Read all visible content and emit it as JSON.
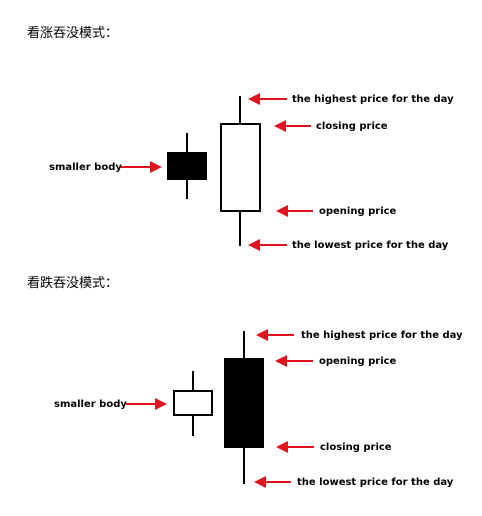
{
  "sections": [
    {
      "heading": "看涨吞没模式：",
      "small_candle_fill": "#000000",
      "large_candle_fill": "#ffffff",
      "labels": {
        "smaller_body": "smaller body",
        "high": "the highest price for the day",
        "top_of_body": "closing price",
        "bottom_of_body": "opening price",
        "low": "the lowest price for the day"
      }
    },
    {
      "heading": "看跌吞没模式：",
      "small_candle_fill": "#ffffff",
      "large_candle_fill": "#000000",
      "labels": {
        "smaller_body": "smaller body",
        "high": "the highest price for the day",
        "top_of_body": "opening price",
        "bottom_of_body": "closing price",
        "low": "the lowest price for the day"
      }
    }
  ],
  "colors": {
    "arrow": "#e0141e",
    "outline": "#000000"
  }
}
